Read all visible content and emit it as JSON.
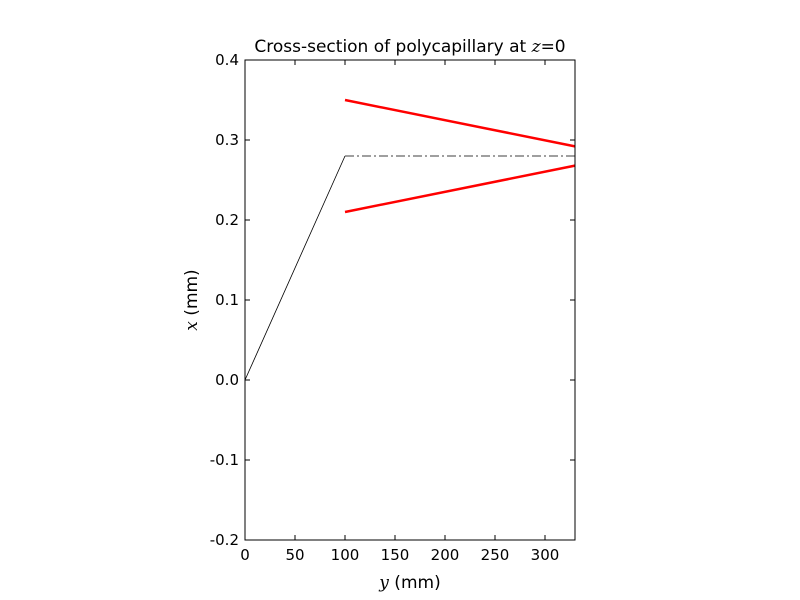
{
  "chart_data": {
    "type": "line",
    "title": {
      "prefix": "Cross-section of polycapillary at ",
      "var": "z",
      "suffix": "=0"
    },
    "xlabel": {
      "var": "y",
      "text": " (mm)"
    },
    "ylabel": {
      "var": "x",
      "text": " (mm)"
    },
    "xlim": [
      0,
      330
    ],
    "ylim": [
      -0.2,
      0.4
    ],
    "x_ticks": [
      {
        "value": 0,
        "label": "0"
      },
      {
        "value": 50,
        "label": "50"
      },
      {
        "value": 100,
        "label": "100"
      },
      {
        "value": 150,
        "label": "150"
      },
      {
        "value": 200,
        "label": "200"
      },
      {
        "value": 250,
        "label": "250"
      },
      {
        "value": 300,
        "label": "300"
      }
    ],
    "y_ticks": [
      {
        "value": -0.2,
        "label": "-0.2"
      },
      {
        "value": -0.1,
        "label": "-0.1"
      },
      {
        "value": 0.0,
        "label": "0.0"
      },
      {
        "value": 0.1,
        "label": "0.1"
      },
      {
        "value": 0.2,
        "label": "0.2"
      },
      {
        "value": 0.3,
        "label": "0.3"
      },
      {
        "value": 0.4,
        "label": "0.4"
      }
    ],
    "grid": false,
    "series": [
      {
        "id": "source-ray",
        "color": "#000000",
        "style": "solid",
        "width": "thin",
        "points": [
          [
            0,
            0.0
          ],
          [
            100,
            0.28
          ]
        ]
      },
      {
        "id": "axis-line",
        "color": "#000000",
        "style": "dash-dot",
        "width": "thin",
        "points": [
          [
            100,
            0.28
          ],
          [
            330,
            0.28
          ]
        ]
      },
      {
        "id": "upper-wall",
        "color": "#ff0000",
        "style": "solid",
        "width": "thick",
        "points": [
          [
            100,
            0.35
          ],
          [
            330,
            0.292
          ]
        ]
      },
      {
        "id": "lower-wall",
        "color": "#ff0000",
        "style": "solid",
        "width": "thick",
        "points": [
          [
            100,
            0.21
          ],
          [
            330,
            0.268
          ]
        ]
      }
    ]
  }
}
